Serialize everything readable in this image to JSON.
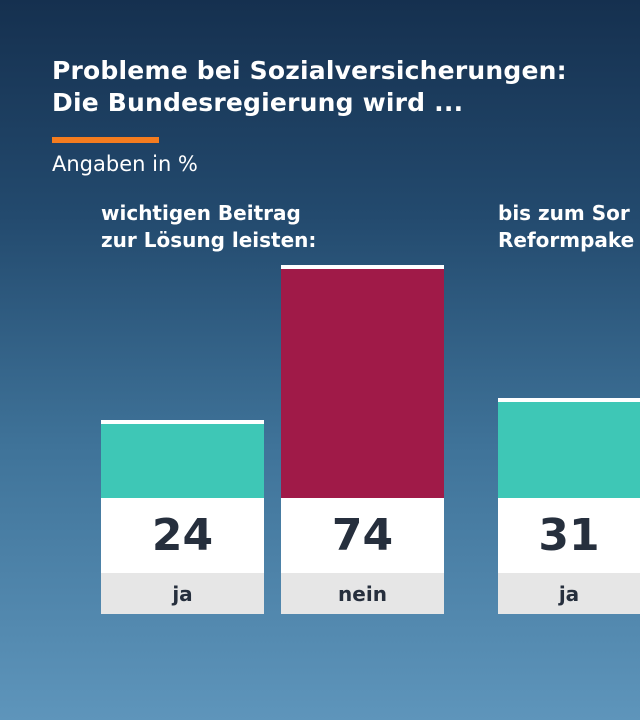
{
  "header": {
    "title_line1": "Probleme bei Sozialversicherungen:",
    "title_line2": "Die Bundesregierung wird ...",
    "subtitle": "Angaben in %"
  },
  "colors": {
    "ja": "#3ec7b6",
    "nein": "#a01a48",
    "accent": "#f47c1f"
  },
  "chart_data": {
    "type": "bar",
    "title": "Probleme bei Sozialversicherungen: Die Bundesregierung wird ...",
    "unit": "Angaben in %",
    "groups": [
      {
        "label_line1": "wichtigen Beitrag",
        "label_line2": "zur Lösung leisten:",
        "bars": [
          {
            "category": "ja",
            "value": 24
          },
          {
            "category": "nein",
            "value": 74
          }
        ]
      },
      {
        "label_line1": "bis zum Sor",
        "label_line2": "Reformpake",
        "bars": [
          {
            "category": "ja",
            "value": 31
          }
        ]
      }
    ]
  }
}
